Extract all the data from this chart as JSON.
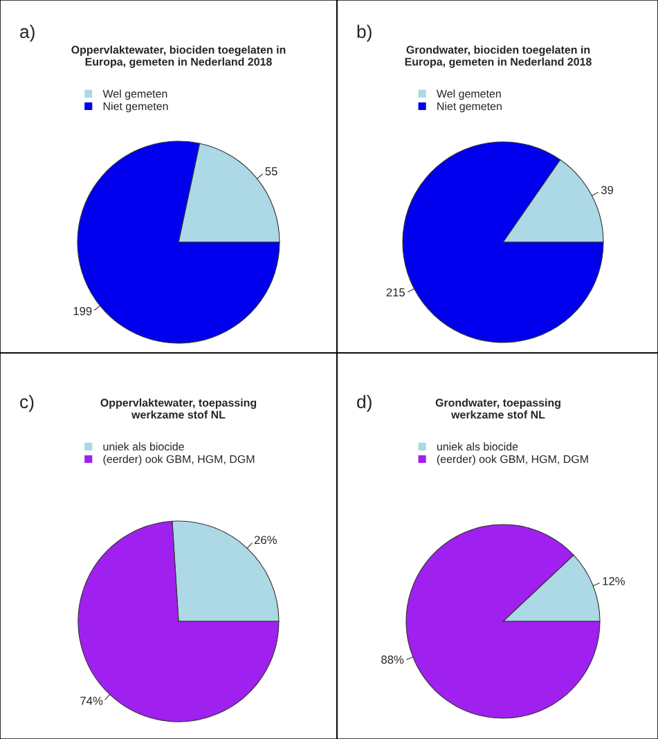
{
  "chart_data": [
    {
      "type": "pie",
      "title": "Oppervlaktewater, biociden toegelaten in\nEuropa, gemeten in Nederland 2018",
      "annotations": [
        "a)"
      ],
      "categories": [
        "Wel gemeten",
        "Niet gemeten"
      ],
      "values": [
        55,
        199
      ],
      "colors": [
        "#add8e6",
        "#0000ee"
      ],
      "data_labels": true,
      "legend": "top left"
    },
    {
      "type": "pie",
      "title": "Grondwater, biociden toegelaten in\nEuropa, gemeten in Nederland 2018",
      "annotations": [
        "b)"
      ],
      "categories": [
        "Wel gemeten",
        "Niet gemeten"
      ],
      "values": [
        39,
        215
      ],
      "colors": [
        "#add8e6",
        "#0000ee"
      ],
      "data_labels": true,
      "legend": "top left"
    },
    {
      "type": "pie",
      "title": "Oppervlaktewater, toepassing\nwerkzame stof NL",
      "annotations": [
        "c)"
      ],
      "categories": [
        "uniek als biocide",
        "(eerder) ook GBM, HGM, DGM"
      ],
      "values": [
        26,
        74
      ],
      "value_labels": [
        "26%",
        "74%"
      ],
      "colors": [
        "#add8e6",
        "#a020f0"
      ],
      "legend": "top left"
    },
    {
      "type": "pie",
      "title": "Grondwater, toepassing\nwerkzame stof NL",
      "annotations": [
        "d)"
      ],
      "categories": [
        "uniek als biocide",
        "(eerder) ook GBM, HGM, DGM"
      ],
      "values": [
        12,
        88
      ],
      "value_labels": [
        "12%",
        "88%"
      ],
      "colors": [
        "#add8e6",
        "#a020f0"
      ],
      "legend": "top left"
    }
  ]
}
